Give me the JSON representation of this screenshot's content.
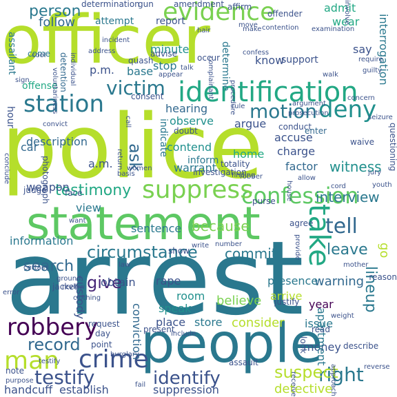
{
  "word_cloud": {
    "background": "#ffffff",
    "palette": [
      "#440154",
      "#3b528b",
      "#21908d",
      "#5dc863",
      "#b5de2b",
      "#fde725"
    ],
    "words": [
      {
        "text": "police",
        "color": "#b5de2b"
      },
      {
        "text": "arrest",
        "color": "#2a788e"
      },
      {
        "text": "officer",
        "color": "#b5de2b"
      },
      {
        "text": "statement",
        "color": "#5dc863"
      },
      {
        "text": "people",
        "color": "#2a788e"
      },
      {
        "text": "identification",
        "color": "#22a884"
      },
      {
        "text": "evidence",
        "color": "#7ad151"
      },
      {
        "text": "confession",
        "color": "#5dc863"
      },
      {
        "text": "suppress",
        "color": "#7ad151"
      },
      {
        "text": "station",
        "color": "#2a788e"
      },
      {
        "text": "motion",
        "color": "#2a788e"
      },
      {
        "text": "victim",
        "color": "#2a788e"
      },
      {
        "text": "take",
        "color": "#22a884"
      },
      {
        "text": "deny",
        "color": "#21908d"
      },
      {
        "text": "tell",
        "color": "#31688e"
      },
      {
        "text": "circumstance",
        "color": "#2a788e"
      },
      {
        "text": "robbery",
        "color": "#440154"
      },
      {
        "text": "crime",
        "color": "#3b528b"
      },
      {
        "text": "man",
        "color": "#b5de2b"
      },
      {
        "text": "testify",
        "color": "#3b528b"
      },
      {
        "text": "identify",
        "color": "#3b528b"
      },
      {
        "text": "right",
        "color": "#2a788e"
      },
      {
        "text": "suspect",
        "color": "#b5de2b"
      },
      {
        "text": "give",
        "color": "#482878"
      },
      {
        "text": "record",
        "color": "#31688e"
      },
      {
        "text": "testimony",
        "color": "#22a884"
      },
      {
        "text": "search",
        "color": "#31688e"
      },
      {
        "text": "because",
        "color": "#7ad151"
      },
      {
        "text": "person",
        "color": "#2a788e"
      },
      {
        "text": "follow",
        "color": "#31688e"
      },
      {
        "text": "ask",
        "color": "#31688e"
      },
      {
        "text": "leave",
        "color": "#2a788e"
      },
      {
        "text": "commit",
        "color": "#2a788e"
      },
      {
        "text": "lineup",
        "color": "#2a788e"
      },
      {
        "text": "interview",
        "color": "#2a788e"
      },
      {
        "text": "witness",
        "color": "#21908d"
      },
      {
        "text": "warning",
        "color": "#31688e"
      },
      {
        "text": "believe",
        "color": "#7ad151"
      },
      {
        "text": "consider",
        "color": "#b5de2b"
      },
      {
        "text": "detective",
        "color": "#b5de2b"
      },
      {
        "text": "description",
        "color": "#31688e"
      },
      {
        "text": "hearing",
        "color": "#31688e"
      },
      {
        "text": "observe",
        "color": "#21908d"
      },
      {
        "text": "argue",
        "color": "#3b528b"
      },
      {
        "text": "contend",
        "color": "#21908d"
      },
      {
        "text": "warrant",
        "color": "#2a788e"
      },
      {
        "text": "charge",
        "color": "#3b528b"
      },
      {
        "text": "factor",
        "color": "#31688e"
      },
      {
        "text": "home",
        "color": "#22a884"
      },
      {
        "text": "accuse",
        "color": "#3b528b"
      },
      {
        "text": "a.m.",
        "color": "#3b528b"
      },
      {
        "text": "car",
        "color": "#31688e"
      },
      {
        "text": "p.m.",
        "color": "#3b528b"
      },
      {
        "text": "minute",
        "color": "#21908d"
      },
      {
        "text": "stop",
        "color": "#2a788e"
      },
      {
        "text": "base",
        "color": "#2a788e"
      },
      {
        "text": "know",
        "color": "#3b528b"
      },
      {
        "text": "sentence",
        "color": "#2a788e"
      },
      {
        "text": "view",
        "color": "#2a788e"
      },
      {
        "text": "weapon",
        "color": "#3b528b"
      },
      {
        "text": "information",
        "color": "#2a788e"
      },
      {
        "text": "custody",
        "color": "#3b528b"
      },
      {
        "text": "obtain",
        "color": "#3b528b"
      },
      {
        "text": "rape",
        "color": "#3b528b"
      },
      {
        "text": "room",
        "color": "#21908d"
      },
      {
        "text": "speak",
        "color": "#21908d"
      },
      {
        "text": "place",
        "color": "#3b528b"
      },
      {
        "text": "store",
        "color": "#2a788e"
      },
      {
        "text": "issue",
        "color": "#2a788e"
      },
      {
        "text": "year",
        "color": "#440154"
      },
      {
        "text": "presence",
        "color": "#2a788e"
      },
      {
        "text": "arrive",
        "color": "#b5de2b"
      },
      {
        "text": "money",
        "color": "#3b528b"
      },
      {
        "text": "conviction",
        "color": "#31688e"
      },
      {
        "text": "apartment",
        "color": "#2a788e"
      },
      {
        "text": "handcuff",
        "color": "#3b528b"
      },
      {
        "text": "establish",
        "color": "#3b528b"
      },
      {
        "text": "suppression",
        "color": "#3b528b"
      },
      {
        "text": "admit",
        "color": "#22a884"
      },
      {
        "text": "wear",
        "color": "#22a884"
      },
      {
        "text": "interrogation",
        "color": "#2a788e"
      },
      {
        "text": "say",
        "color": "#3b528b"
      },
      {
        "text": "support",
        "color": "#3b528b"
      },
      {
        "text": "assailant",
        "color": "#2a788e"
      },
      {
        "text": "offense",
        "color": "#22a884"
      },
      {
        "text": "hour",
        "color": "#3b528b"
      },
      {
        "text": "attempt",
        "color": "#2a788e"
      },
      {
        "text": "report",
        "color": "#3b528b"
      },
      {
        "text": "amendment",
        "color": "#3b528b"
      },
      {
        "text": "determination",
        "color": "#3b528b"
      },
      {
        "text": "offender",
        "color": "#3b528b"
      },
      {
        "text": "determine",
        "color": "#2a788e"
      },
      {
        "text": "gun",
        "color": "#3b528b"
      },
      {
        "text": "affirm",
        "color": "#3b528b"
      },
      {
        "text": "advise",
        "color": "#3b528b"
      },
      {
        "text": "occur",
        "color": "#3b528b"
      },
      {
        "text": "quash",
        "color": "#3b528b"
      },
      {
        "text": "come",
        "color": "#2a788e"
      },
      {
        "text": "detention",
        "color": "#31688e"
      },
      {
        "text": "consent",
        "color": "#3b528b"
      },
      {
        "text": "indicate",
        "color": "#2a788e"
      },
      {
        "text": "inform",
        "color": "#2a788e"
      },
      {
        "text": "investigation",
        "color": "#3b528b"
      },
      {
        "text": "doubt",
        "color": "#3b528b"
      },
      {
        "text": "conduct",
        "color": "#3b528b"
      },
      {
        "text": "enter",
        "color": "#31688e"
      },
      {
        "text": "questioning",
        "color": "#3b528b"
      },
      {
        "text": "waive",
        "color": "#3b528b"
      },
      {
        "text": "totality",
        "color": "#3b528b"
      },
      {
        "text": "finding",
        "color": "#3b528b"
      },
      {
        "text": "photograph",
        "color": "#3b528b"
      },
      {
        "text": "judge",
        "color": "#3b528b"
      },
      {
        "text": "face",
        "color": "#3b528b"
      },
      {
        "text": "purse",
        "color": "#3b528b"
      },
      {
        "text": "agree",
        "color": "#3b528b"
      },
      {
        "text": "jacket",
        "color": "#3b528b"
      },
      {
        "text": "reason",
        "color": "#3b528b"
      },
      {
        "text": "show",
        "color": "#3b528b"
      },
      {
        "text": "justify",
        "color": "#3b528b"
      },
      {
        "text": "request",
        "color": "#3b528b"
      },
      {
        "text": "present",
        "color": "#3b528b"
      },
      {
        "text": "review",
        "color": "#3b528b"
      },
      {
        "text": "look",
        "color": "#3b528b"
      },
      {
        "text": "read",
        "color": "#3b528b"
      },
      {
        "text": "describe",
        "color": "#3b528b"
      },
      {
        "text": "day",
        "color": "#3b528b"
      },
      {
        "text": "point",
        "color": "#3b528b"
      },
      {
        "text": "assault",
        "color": "#3b528b"
      },
      {
        "text": "burglary",
        "color": "#3b528b"
      },
      {
        "text": "note",
        "color": "#3b528b"
      },
      {
        "text": "purpose",
        "color": "#3b528b"
      },
      {
        "text": "fail",
        "color": "#3b528b"
      },
      {
        "text": "receive",
        "color": "#3b528b"
      },
      {
        "text": "go",
        "color": "#b5de2b"
      },
      {
        "text": "ground",
        "color": "#3b528b"
      },
      {
        "text": "certain",
        "color": "#3b528b"
      },
      {
        "text": "jury",
        "color": "#3b528b"
      },
      {
        "text": "youth",
        "color": "#3b528b"
      },
      {
        "text": "cord",
        "color": "#3b528b"
      },
      {
        "text": "basis",
        "color": "#3b528b"
      },
      {
        "text": "women",
        "color": "#3b528b"
      },
      {
        "text": "robber",
        "color": "#3b528b"
      },
      {
        "text": "call",
        "color": "#3b528b"
      },
      {
        "text": "rule",
        "color": "#3b528b"
      },
      {
        "text": "seizure",
        "color": "#3b528b"
      },
      {
        "text": "argument",
        "color": "#3b528b"
      },
      {
        "text": "require",
        "color": "#3b528b"
      },
      {
        "text": "guilty",
        "color": "#3b528b"
      },
      {
        "text": "walk",
        "color": "#3b528b"
      },
      {
        "text": "procedure",
        "color": "#3b528b"
      },
      {
        "text": "examination",
        "color": "#3b528b"
      },
      {
        "text": "contention",
        "color": "#3b528b"
      },
      {
        "text": "complainant",
        "color": "#3b528b"
      },
      {
        "text": "incident",
        "color": "#3b528b"
      },
      {
        "text": "conclude",
        "color": "#3b528b"
      },
      {
        "text": "convict",
        "color": "#3b528b"
      },
      {
        "text": "error",
        "color": "#3b528b"
      },
      {
        "text": "want",
        "color": "#3b528b"
      },
      {
        "text": "write",
        "color": "#3b528b"
      },
      {
        "text": "number",
        "color": "#3b528b"
      },
      {
        "text": "mother",
        "color": "#3b528b"
      },
      {
        "text": "weight",
        "color": "#3b528b"
      },
      {
        "text": "allow",
        "color": "#3b528b"
      },
      {
        "text": "house",
        "color": "#3b528b"
      },
      {
        "text": "provide",
        "color": "#3b528b"
      },
      {
        "text": "address",
        "color": "#3b528b"
      },
      {
        "text": "individual",
        "color": "#3b528b"
      },
      {
        "text": "voluntariness",
        "color": "#3b528b"
      },
      {
        "text": "sign",
        "color": "#3b528b"
      },
      {
        "text": "appear",
        "color": "#3b528b"
      },
      {
        "text": "talk",
        "color": "#3b528b"
      },
      {
        "text": "confess",
        "color": "#3b528b"
      },
      {
        "text": "make",
        "color": "#3b528b"
      },
      {
        "text": "move",
        "color": "#3b528b"
      },
      {
        "text": "hair",
        "color": "#3b528b"
      },
      {
        "text": "involve",
        "color": "#3b528b"
      },
      {
        "text": "law",
        "color": "#3b528b"
      },
      {
        "text": "include",
        "color": "#3b528b"
      },
      {
        "text": "clothing",
        "color": "#3b528b"
      },
      {
        "text": "approach",
        "color": "#3b528b"
      },
      {
        "text": "reverse",
        "color": "#3b528b"
      },
      {
        "text": "concern",
        "color": "#3b528b"
      },
      {
        "text": "return",
        "color": "#3b528b"
      },
      {
        "text": "cool",
        "color": "#3b528b"
      },
      {
        "text": "prosecution",
        "color": "#3b528b"
      },
      {
        "text": "testify",
        "color": "#3b528b"
      }
    ]
  }
}
